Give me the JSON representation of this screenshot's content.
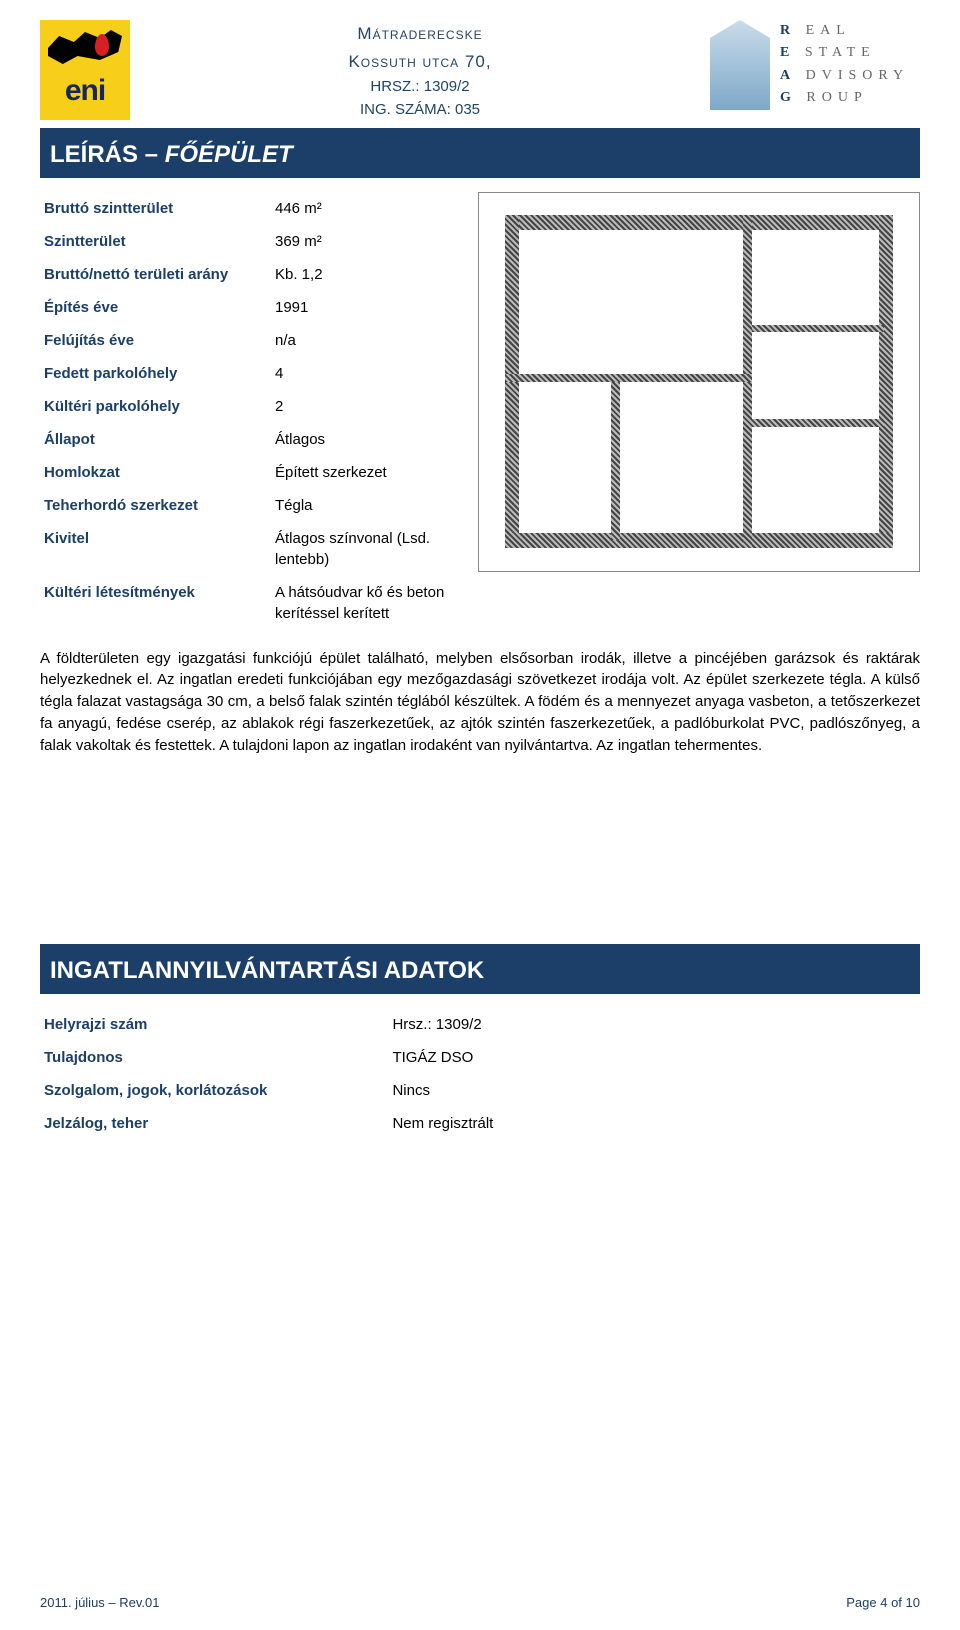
{
  "header": {
    "line1": "Mátraderecske",
    "line2": "Kossuth utca 70,",
    "line3": "HRSZ.: 1309/2",
    "line4": "ING. SZÁMA: 035"
  },
  "logo_left": {
    "brand": "eni"
  },
  "logo_right": {
    "l1_bold": "R",
    "l1_rest": "EAL",
    "l2_bold": "E",
    "l2_rest": "STATE",
    "l3_bold": "A",
    "l3_rest": "DVISORY",
    "l4_bold": "G",
    "l4_rest": "ROUP"
  },
  "section1": {
    "plain": "LEÍRÁS – ",
    "italic": "FŐÉPÜLET"
  },
  "building": {
    "rows": [
      {
        "key": "Bruttó szintterület",
        "val": "446 m²"
      },
      {
        "key": "Szintterület",
        "val": "369 m²"
      },
      {
        "key": "Bruttó/nettó területi arány",
        "val": "Kb. 1,2"
      },
      {
        "key": "Építés éve",
        "val": "1991"
      },
      {
        "key": "Felújítás éve",
        "val": "n/a"
      },
      {
        "key": "Fedett parkolóhely",
        "val": "4"
      },
      {
        "key": "Kültéri parkolóhely",
        "val": "2"
      },
      {
        "key": "Állapot",
        "val": "Átlagos"
      },
      {
        "key": "Homlokzat",
        "val": "Épített szerkezet"
      },
      {
        "key": "Teherhordó szerkezet",
        "val": "Tégla"
      },
      {
        "key": "Kivitel",
        "val": "Átlagos színvonal (Lsd. lentebb)"
      },
      {
        "key": "Kültéri létesítmények",
        "val": "A hátsóudvar kő és beton kerítéssel kerített"
      }
    ]
  },
  "description": "A földterületen egy igazgatási funkciójú épület található, melyben elsősorban irodák, illetve a pincéjében garázsok és raktárak helyezkednek el. Az ingatlan eredeti funkciójában egy mezőgazdasági szövetkezet irodája volt. Az épület szerkezete tégla. A külső tégla falazat vastagsága 30 cm, a belső falak szintén téglából készültek. A födém és a mennyezet anyaga vasbeton, a tetőszerkezet fa anyagú, fedése cserép, az ablakok régi faszerkezetűek, az ajtók szintén faszerkezetűek, a padlóburkolat PVC, padlószőnyeg, a falak vakoltak és festettek. A tulajdoni lapon az ingatlan irodaként van nyilvántartva. Az ingatlan tehermentes.",
  "section2": "INGATLANNYILVÁNTARTÁSI ADATOK",
  "registry": {
    "rows": [
      {
        "key": "Helyrajzi szám",
        "val": "Hrsz.: 1309/2"
      },
      {
        "key": "Tulajdonos",
        "val": "TIGÁZ DSO"
      },
      {
        "key": "Szolgalom, jogok, korlátozások",
        "val": "Nincs"
      },
      {
        "key": "Jelzálog, teher",
        "val": "Nem regisztrált"
      }
    ]
  },
  "footer": {
    "left": "2011. július – Rev.01",
    "right": "Page 4 of 10"
  },
  "colors": {
    "brand_navy": "#1b3f68",
    "eni_yellow": "#f7cf1a"
  }
}
